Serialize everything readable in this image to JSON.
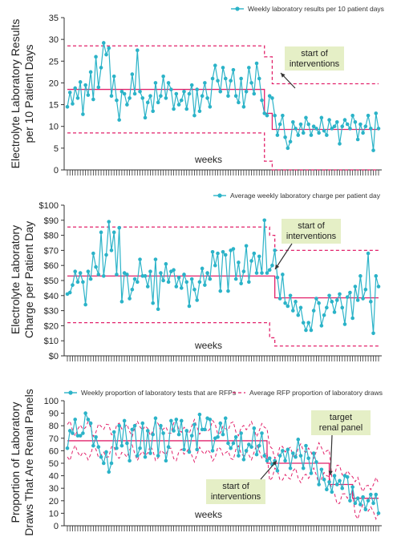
{
  "colors": {
    "series": "#2bb3c8",
    "limit": "#e2226b",
    "callout_fill": "#e5efc6",
    "axis": "#333333"
  },
  "chart_data": [
    {
      "type": "line",
      "ylabel": [
        "Electrolyte Laboratory Results",
        "per 10 Patient Days"
      ],
      "xlabel": "weeks",
      "ylim": [
        0,
        35
      ],
      "yticks": [
        0,
        5,
        10,
        15,
        20,
        25,
        30,
        35
      ],
      "ytick_labels": [
        "0",
        "5",
        "10",
        "15",
        "20",
        "25",
        "30",
        "35"
      ],
      "grid": false,
      "legend_position": "top-right",
      "series": [
        {
          "name": "Weekly laboratory results per 10 patient days",
          "values": [
            14.5,
            17.8,
            15.2,
            18.8,
            16.5,
            20.2,
            12.8,
            19.5,
            17.2,
            22.5,
            16.2,
            26.0,
            19.0,
            23.5,
            29.2,
            26.5,
            28.0,
            17.0,
            21.5,
            16.0,
            11.5,
            18.0,
            17.5,
            15.0,
            16.5,
            22.0,
            17.5,
            27.5,
            18.0,
            16.5,
            12.0,
            15.5,
            17.0,
            13.5,
            20.0,
            15.5,
            17.0,
            21.5,
            16.5,
            20.0,
            18.5,
            14.0,
            17.5,
            15.0,
            16.0,
            18.0,
            14.0,
            17.5,
            19.5,
            12.5,
            18.5,
            13.5,
            17.0,
            20.0,
            16.5,
            14.5,
            21.0,
            24.0,
            20.5,
            18.0,
            23.5,
            21.0,
            17.0,
            20.5,
            23.0,
            17.0,
            15.5,
            21.0,
            14.5,
            18.0,
            23.5,
            20.0,
            17.5,
            24.5,
            21.0,
            16.0,
            13.0,
            12.5,
            17.0,
            16.5,
            12.5,
            8.0,
            10.5,
            12.5,
            7.5,
            5.0,
            6.5,
            11.0,
            9.5,
            8.0,
            10.5,
            8.5,
            12.0,
            10.5,
            8.0,
            10.0,
            9.5,
            8.5,
            12.0,
            9.0,
            8.0,
            11.5,
            9.5,
            10.0,
            11.0,
            6.0,
            10.0,
            11.5,
            10.5,
            9.5,
            12.5,
            11.0,
            7.0,
            10.5,
            8.5,
            10.0,
            12.5,
            9.5,
            4.5,
            13.0,
            9.5
          ]
        },
        {
          "name": "center line",
          "segments": [
            {
              "from": 0,
              "to": 76,
              "value": 18.5
            },
            {
              "from": 76,
              "to": 79,
              "value": 13.0
            },
            {
              "from": 79,
              "to": 120,
              "value": 9.3
            }
          ]
        },
        {
          "name": "upper control limit",
          "segments": [
            {
              "from": 0,
              "to": 76,
              "value": 28.5
            },
            {
              "from": 76,
              "to": 79,
              "value": 26.0
            },
            {
              "from": 79,
              "to": 120,
              "value": 19.8
            }
          ]
        },
        {
          "name": "lower control limit",
          "segments": [
            {
              "from": 0,
              "to": 76,
              "value": 8.5
            },
            {
              "from": 76,
              "to": 79,
              "value": 2.0
            },
            {
              "from": 79,
              "to": 120,
              "value": 0.0
            }
          ]
        }
      ],
      "annotations": [
        {
          "text": [
            "start of",
            "interventions"
          ],
          "x": 77,
          "y": 18
        }
      ]
    },
    {
      "type": "line",
      "ylabel": [
        "Electrolyte Laboratory",
        "Charge per Patient Day"
      ],
      "xlabel": "weeks",
      "ylim": [
        0,
        100
      ],
      "yticks": [
        0,
        10,
        20,
        30,
        40,
        50,
        60,
        70,
        80,
        90,
        100
      ],
      "ytick_labels": [
        "$0",
        "$10",
        "$20",
        "$30",
        "$40",
        "$50",
        "$60",
        "$70",
        "$80",
        "$90",
        "$100"
      ],
      "grid": false,
      "legend_position": "top-right",
      "series": [
        {
          "name": "Average weekly laboratory charge per patient day",
          "values": [
            41,
            42,
            47,
            56,
            49,
            55,
            49,
            34,
            56,
            51,
            68,
            59,
            54,
            82,
            53,
            67,
            89,
            70,
            82,
            54,
            85,
            36,
            55,
            54,
            38,
            44,
            51,
            49,
            64,
            53,
            53,
            46,
            56,
            35,
            64,
            31,
            55,
            50,
            61,
            49,
            56,
            57,
            46,
            52,
            45,
            54,
            49,
            33,
            51,
            44,
            37,
            49,
            58,
            47,
            55,
            51,
            69,
            60,
            68,
            43,
            69,
            67,
            43,
            70,
            71,
            51,
            62,
            48,
            56,
            73,
            49,
            63,
            68,
            55,
            66,
            55,
            90,
            55,
            57,
            60,
            70,
            52,
            38,
            54,
            35,
            33,
            40,
            30,
            36,
            27,
            32,
            22,
            17,
            22,
            17,
            30,
            38,
            35,
            20,
            27,
            32,
            40,
            36,
            29,
            37,
            41,
            32,
            21,
            39,
            42,
            25,
            46,
            37,
            53,
            38,
            44,
            68,
            36,
            15,
            53,
            46
          ]
        },
        {
          "name": "center line",
          "segments": [
            {
              "from": 0,
              "to": 80,
              "value": 53.0
            },
            {
              "from": 80,
              "to": 120,
              "value": 38.5
            }
          ]
        },
        {
          "name": "upper control limit",
          "segments": [
            {
              "from": 0,
              "to": 78,
              "value": 85.5
            },
            {
              "from": 78,
              "to": 80,
              "value": 80.0
            },
            {
              "from": 80,
              "to": 120,
              "value": 70.0
            }
          ]
        },
        {
          "name": "lower control limit",
          "segments": [
            {
              "from": 0,
              "to": 78,
              "value": 22.0
            },
            {
              "from": 78,
              "to": 80,
              "value": 12.0
            },
            {
              "from": 80,
              "to": 120,
              "value": 6.5
            }
          ]
        }
      ],
      "annotations": [
        {
          "text": [
            "start of",
            "interventions"
          ],
          "x": 80,
          "y": 50
        }
      ]
    },
    {
      "type": "line",
      "ylabel": [
        "Proportion of Laboratory",
        "Draws That Are Renal Panels"
      ],
      "xlabel": "weeks",
      "ylim": [
        0,
        100
      ],
      "yticks": [
        0,
        10,
        20,
        30,
        40,
        50,
        60,
        70,
        80,
        90,
        100
      ],
      "ytick_labels": [
        "0",
        "10",
        "20",
        "30",
        "40",
        "50",
        "60",
        "70",
        "80",
        "90",
        "100"
      ],
      "grid": false,
      "legend_position": "top",
      "series": [
        {
          "name": "Weekly proportion of laboratory tests that are RFPs",
          "values": [
            62,
            76,
            74,
            85,
            72,
            72,
            74,
            90,
            85,
            82,
            64,
            71,
            63,
            55,
            50,
            59,
            43,
            50,
            75,
            62,
            80,
            64,
            84,
            66,
            52,
            77,
            80,
            56,
            62,
            82,
            55,
            76,
            58,
            73,
            86,
            56,
            80,
            74,
            52,
            63,
            84,
            76,
            85,
            73,
            84,
            61,
            76,
            59,
            72,
            81,
            61,
            89,
            77,
            77,
            86,
            85,
            60,
            70,
            71,
            82,
            73,
            86,
            66,
            62,
            66,
            71,
            56,
            74,
            53,
            60,
            65,
            63,
            78,
            57,
            64,
            74,
            56,
            52,
            54,
            49,
            52,
            44,
            56,
            60,
            52,
            61,
            46,
            58,
            55,
            69,
            56,
            46,
            64,
            54,
            42,
            58,
            51,
            33,
            45,
            37,
            29,
            35,
            27,
            40,
            33,
            36,
            30,
            40,
            39,
            20,
            31,
            18,
            22,
            17,
            23,
            13,
            20,
            25,
            18,
            25,
            10
          ]
        },
        {
          "name": "Average RFP proportion of laboratory draws",
          "segments": [
            {
              "from": 0,
              "to": 77,
              "value": 68.0
            },
            {
              "from": 77,
              "to": 101,
              "value": 50.0
            },
            {
              "from": 101,
              "to": 110,
              "value": 33.0
            },
            {
              "from": 110,
              "to": 120,
              "value": 22.0
            }
          ]
        }
      ],
      "annotations": [
        {
          "text": [
            "start of",
            "interventions"
          ],
          "x": 77,
          "y": 50
        },
        {
          "text": [
            "target",
            "renal panel"
          ],
          "x": 101,
          "y": 33
        }
      ]
    }
  ]
}
